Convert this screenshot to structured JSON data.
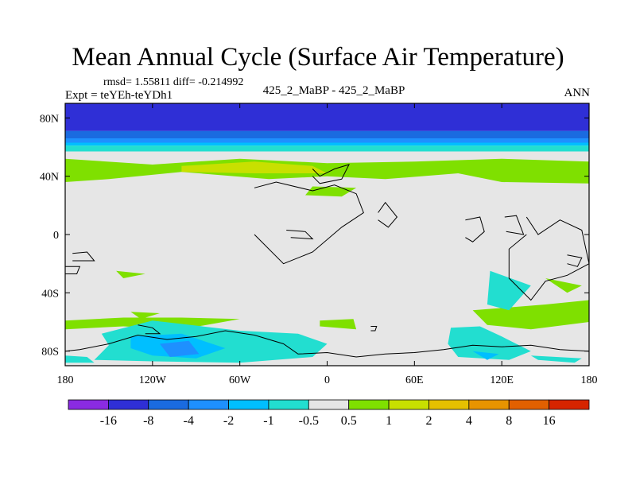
{
  "chart_data": {
    "type": "heatmap",
    "title": "Mean Annual Cycle (Surface Air Temperature)",
    "stats_text": "rmsd= 1.55811 diff= -0.214992",
    "experiment_text": "Expt = teYEh-teYDh1",
    "center_label": "425_2_MaBP - 425_2_MaBP",
    "season": "ANN",
    "x_ticks": [
      "180",
      "120W",
      "60W",
      "0",
      "60E",
      "120E",
      "180"
    ],
    "x_values": [
      -180,
      -120,
      -60,
      0,
      60,
      120,
      180
    ],
    "y_ticks": [
      "80N",
      "40N",
      "0",
      "40S",
      "80S"
    ],
    "y_values": [
      80,
      40,
      0,
      -40,
      -80
    ],
    "xlim": [
      -180,
      180
    ],
    "ylim": [
      -90,
      90
    ],
    "colorbar": {
      "labels": [
        "-16",
        "-8",
        "-4",
        "-2",
        "-1",
        "-0.5",
        "0.5",
        "1",
        "2",
        "4",
        "8",
        "16"
      ],
      "colors": [
        "#8a2be2",
        "#2f2fd6",
        "#1a6be0",
        "#1e90ff",
        "#00bfff",
        "#22ded0",
        "#e6e6e6",
        "#7fe000",
        "#c8e000",
        "#e6c000",
        "#e89400",
        "#e26000",
        "#d62400"
      ]
    },
    "zonal_bands": [
      {
        "lat_top": 90,
        "lat_bottom": 71,
        "color_index": 1
      },
      {
        "lat_top": 71,
        "lat_bottom": 66,
        "color_index": 2
      },
      {
        "lat_top": 66,
        "lat_bottom": 63,
        "color_index": 3
      },
      {
        "lat_top": 63,
        "lat_bottom": 61,
        "color_index": 4
      },
      {
        "lat_top": 61,
        "lat_bottom": 57,
        "color_index": 5
      },
      {
        "lat_top": 57,
        "lat_bottom": 52,
        "color_index": 6
      }
    ],
    "regions": [
      {
        "color_index": 7,
        "lon": [
          -180,
          -120,
          -60,
          0,
          60,
          120,
          180,
          180,
          120,
          90,
          40,
          0,
          -40,
          -100,
          -150,
          -180
        ],
        "lat": [
          52,
          48,
          52,
          49,
          50,
          52,
          50,
          35,
          36,
          42,
          38,
          40,
          38,
          43,
          38,
          36
        ]
      },
      {
        "color_index": 8,
        "lon": [
          -100,
          -50,
          -10,
          0,
          -50,
          -100
        ],
        "lat": [
          47,
          50,
          47,
          42,
          42,
          43
        ]
      },
      {
        "color_index": 7,
        "lon": [
          -10,
          20,
          10,
          -15
        ],
        "lat": [
          33,
          32,
          26,
          27
        ]
      },
      {
        "color_index": 7,
        "lon": [
          -145,
          -125,
          -140
        ],
        "lat": [
          -25,
          -27,
          -30
        ]
      },
      {
        "color_index": 7,
        "lon": [
          -135,
          -115,
          -128
        ],
        "lat": [
          -53,
          -54,
          -58
        ]
      },
      {
        "color_index": 7,
        "lon": [
          -180,
          -140,
          -100,
          -60,
          -100,
          -140,
          -180
        ],
        "lat": [
          -65,
          -63,
          -65,
          -58,
          -57,
          -57,
          -59
        ]
      },
      {
        "color_index": 7,
        "lon": [
          -5,
          20,
          18,
          -5
        ],
        "lat": [
          -63,
          -65,
          -58,
          -59
        ]
      },
      {
        "color_index": 7,
        "lon": [
          100,
          150,
          180,
          180,
          140,
          110
        ],
        "lat": [
          -52,
          -48,
          -45,
          -60,
          -65,
          -62
        ]
      },
      {
        "color_index": 7,
        "lon": [
          150,
          175,
          165
        ],
        "lat": [
          -30,
          -35,
          -40
        ]
      },
      {
        "color_index": 5,
        "lon": [
          -155,
          -120,
          -60,
          -20,
          0,
          -10,
          -60,
          -120,
          -160,
          -150
        ],
        "lat": [
          -68,
          -59,
          -66,
          -68,
          -75,
          -84,
          -88,
          -87,
          -86,
          -76
        ]
      },
      {
        "color_index": 4,
        "lon": [
          -135,
          -100,
          -70,
          -90,
          -120,
          -135
        ],
        "lat": [
          -70,
          -68,
          -78,
          -85,
          -83,
          -78
        ]
      },
      {
        "color_index": 3,
        "lon": [
          -115,
          -95,
          -88,
          -108
        ],
        "lat": [
          -75,
          -73,
          -82,
          -84
        ]
      },
      {
        "color_index": 5,
        "lon": [
          85,
          105,
          120,
          140,
          125,
          90,
          83
        ],
        "lat": [
          -64,
          -63,
          -70,
          -80,
          -86,
          -84,
          -75
        ]
      },
      {
        "color_index": 4,
        "lon": [
          100,
          118,
          110
        ],
        "lat": [
          -80,
          -82,
          -86
        ]
      },
      {
        "color_index": 5,
        "lon": [
          140,
          175,
          170,
          145
        ],
        "lat": [
          -83,
          -85,
          -88,
          -86
        ]
      },
      {
        "color_index": 5,
        "lon": [
          112,
          140,
          125,
          110
        ],
        "lat": [
          -25,
          -35,
          -52,
          -48
        ]
      },
      {
        "color_index": 5,
        "lon": [
          -180,
          -165,
          -160,
          -180
        ],
        "lat": [
          -83,
          -84,
          -88,
          -88
        ]
      }
    ],
    "land_outlines": [
      {
        "lon": [
          -10,
          -5,
          5,
          15,
          10,
          -5,
          -10
        ],
        "lat": [
          45,
          40,
          45,
          48,
          38,
          35,
          40
        ]
      },
      {
        "lon": [
          -50,
          -35,
          -10,
          5,
          20,
          25,
          10,
          -10,
          -30,
          -50
        ],
        "lat": [
          32,
          36,
          30,
          34,
          28,
          15,
          5,
          -12,
          -20,
          0
        ]
      },
      {
        "lon": [
          -28,
          -15,
          -10,
          -25
        ],
        "lat": [
          3,
          2,
          -3,
          -2
        ]
      },
      {
        "lon": [
          35,
          40,
          48,
          42,
          35
        ],
        "lat": [
          15,
          22,
          12,
          5,
          10
        ]
      },
      {
        "lon": [
          95,
          105,
          108,
          100,
          95
        ],
        "lat": [
          10,
          12,
          2,
          -5,
          -2
        ]
      },
      {
        "lon": [
          122,
          130,
          135,
          123
        ],
        "lat": [
          12,
          13,
          0,
          2
        ]
      },
      {
        "lon": [
          137,
          145,
          160,
          175,
          180,
          165,
          150,
          140,
          125,
          125,
          137
        ],
        "lat": [
          12,
          0,
          10,
          3,
          -20,
          -28,
          -32,
          -45,
          -30,
          -10,
          0
        ]
      },
      {
        "lon": [
          165,
          175,
          172,
          165
        ],
        "lat": [
          -14,
          -16,
          -22,
          -20
        ]
      },
      {
        "lon": [
          -175,
          -165,
          -160,
          -175
        ],
        "lat": [
          -13,
          -12,
          -18,
          -18
        ]
      },
      {
        "lon": [
          -180,
          -170,
          -172,
          -180
        ],
        "lat": [
          -22,
          -22,
          -27,
          -27
        ]
      },
      {
        "lon": [
          -180,
          -170,
          -150,
          -130,
          -110,
          -90,
          -70,
          -50,
          -30,
          -20,
          0,
          20,
          40,
          60,
          80,
          100,
          120,
          140,
          160,
          180
        ],
        "lat": [
          -80,
          -79,
          -75,
          -69,
          -72,
          -70,
          -66,
          -69,
          -75,
          -82,
          -81,
          -84,
          -82,
          -81,
          -79,
          -76,
          -77,
          -76,
          -79,
          -80
        ]
      },
      {
        "lon": [
          -130,
          -120,
          -115,
          -125
        ],
        "lat": [
          -62,
          -64,
          -68,
          -68
        ]
      },
      {
        "lon": [
          30,
          34,
          33,
          30
        ],
        "lat": [
          -63,
          -63,
          -66,
          -66
        ]
      }
    ]
  }
}
